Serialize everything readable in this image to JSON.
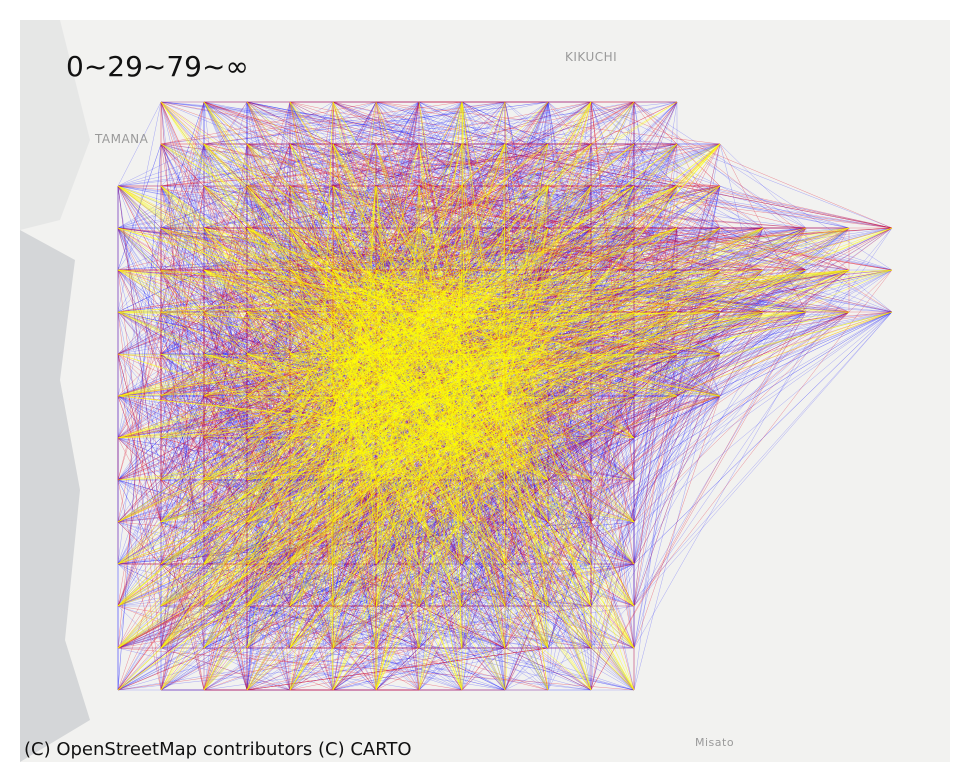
{
  "legend": {
    "title": "0~29~79~∞"
  },
  "attribution": "(C) OpenStreetMap contributors (C) CARTO",
  "places": {
    "tamana": "TAMANA",
    "kikuchi": "KIKUCHI",
    "misato": "Misato"
  },
  "colors": {
    "low": "#1a1aff",
    "mid": "#e0102a",
    "high": "#ffff00",
    "water": "#d4d6d8",
    "land": "#f2f2f0"
  }
}
